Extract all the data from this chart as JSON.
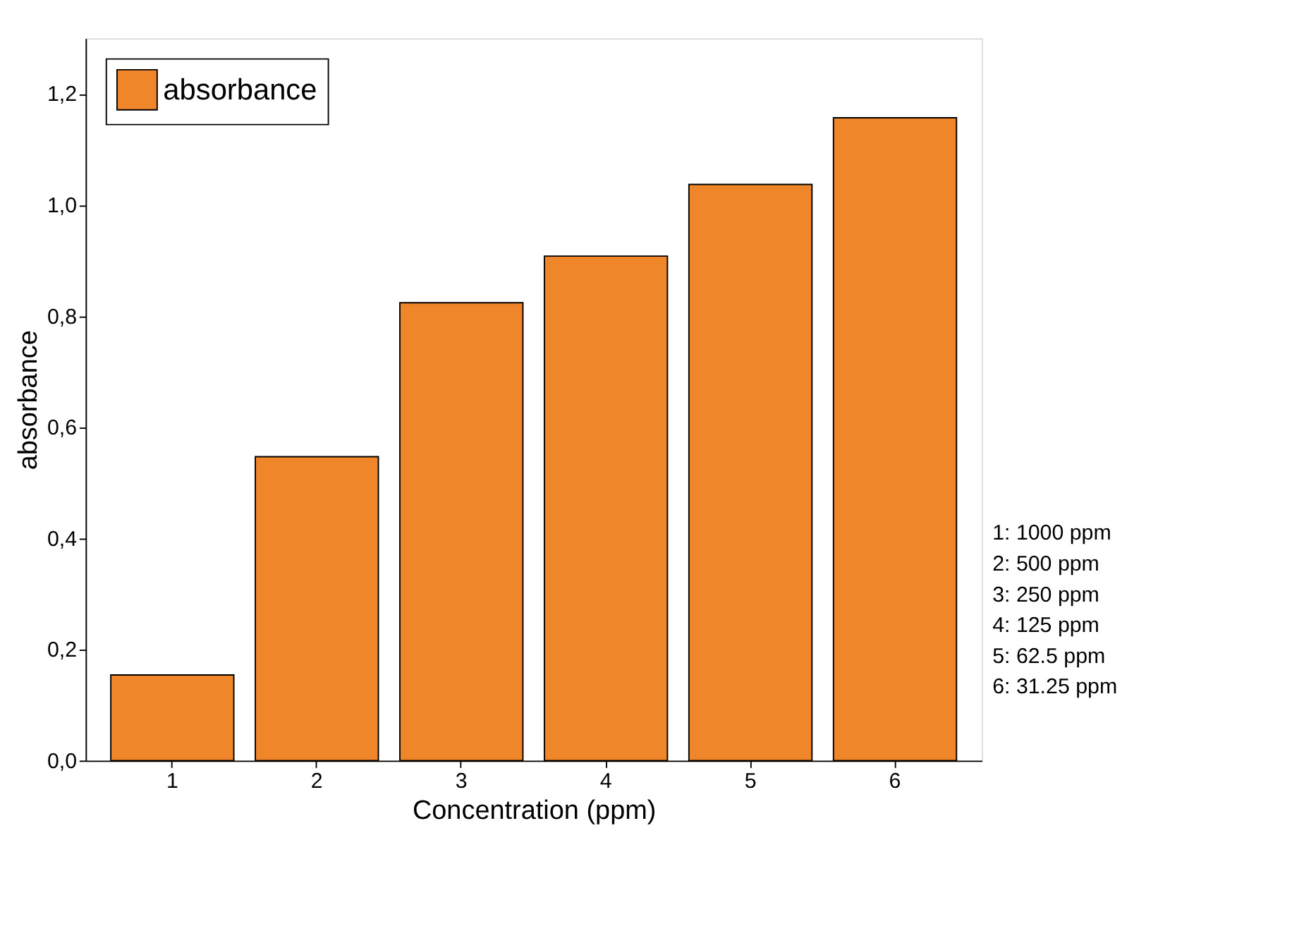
{
  "chart_data": {
    "type": "bar",
    "categories": [
      "1",
      "2",
      "3",
      "4",
      "5",
      "6"
    ],
    "series": [
      {
        "name": "absorbance",
        "color": "#f0862a",
        "values": [
          0.154,
          0.547,
          0.824,
          0.908,
          1.037,
          1.157
        ]
      }
    ],
    "xlabel": "Concentration (ppm)",
    "ylabel": "absorbance",
    "ylim": [
      0,
      1.3
    ],
    "yticks": [
      {
        "value": 0,
        "label": "0,0"
      },
      {
        "value": 0.2,
        "label": "0,2"
      },
      {
        "value": 0.4,
        "label": "0,4"
      },
      {
        "value": 0.6,
        "label": "0,6"
      },
      {
        "value": 0.8,
        "label": "0,8"
      },
      {
        "value": 1.0,
        "label": "1,0"
      },
      {
        "value": 1.2,
        "label": "1,2"
      }
    ],
    "annotations": [
      "1: 1000 ppm",
      "2: 500 ppm",
      "3: 250 ppm",
      "4: 125 ppm",
      "5: 62.5 ppm",
      "6: 31.25 ppm"
    ],
    "legend": "top left",
    "grid": false
  }
}
